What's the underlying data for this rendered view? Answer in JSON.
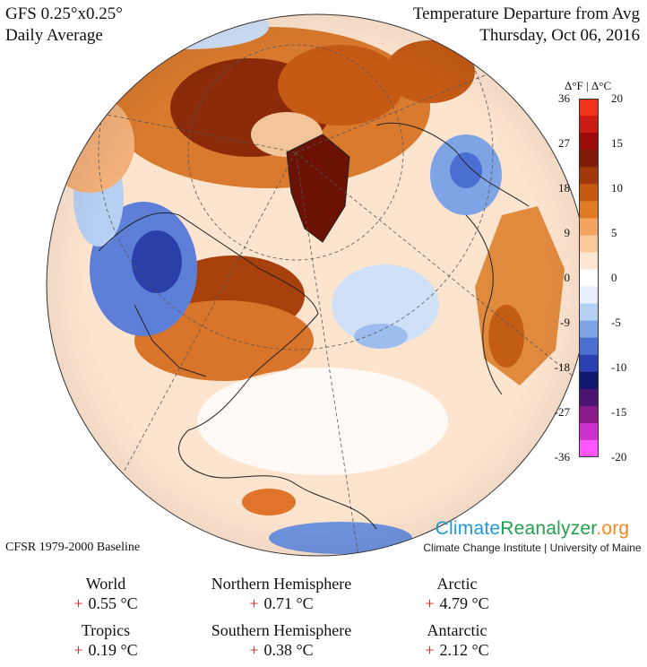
{
  "header": {
    "model": "GFS 0.25°x0.25°",
    "period": "Daily Average",
    "product": "Temperature Departure from Avg",
    "date": "Thursday, Oct 06, 2016"
  },
  "footer": {
    "baseline": "CFSR 1979-2000 Baseline",
    "logo_part1": "Climate",
    "logo_part2": "Reanalyzer",
    "logo_part3": ".org",
    "institution": "Climate Change Institute | University of Maine"
  },
  "scale": {
    "header": "Δ°F  |  Δ°C",
    "fahrenheit_ticks": [
      "36",
      "27",
      "18",
      "9",
      "0",
      "-9",
      "-18",
      "-27",
      "-36"
    ],
    "celsius_ticks": [
      "20",
      "15",
      "10",
      "5",
      "0",
      "-5",
      "-10",
      "-15",
      "-20"
    ],
    "colors": [
      "#ff55ff",
      "#cc33cc",
      "#8a1a8a",
      "#4a1470",
      "#101870",
      "#2a40b0",
      "#4a6fd0",
      "#7ea4e6",
      "#b5d0f2",
      "#e6effb",
      "#ffffff",
      "#fde7d3",
      "#fbc89c",
      "#f3a461",
      "#e07b24",
      "#c55a10",
      "#a0380a",
      "#7e1b05",
      "#9a0c0c",
      "#cc1a14",
      "#f13119"
    ],
    "ocean_color": "#fce6d2"
  },
  "stats": [
    {
      "region": "World",
      "sign": "+",
      "value": "0.55 °C"
    },
    {
      "region": "Northern Hemisphere",
      "sign": "+",
      "value": "0.71 °C"
    },
    {
      "region": "Arctic",
      "sign": "+",
      "value": "4.79 °C"
    },
    {
      "region": "Tropics",
      "sign": "+",
      "value": "0.19 °C"
    },
    {
      "region": "Southern Hemisphere",
      "sign": "+",
      "value": "0.38 °C"
    },
    {
      "region": "Antarctic",
      "sign": "+",
      "value": "2.12 °C"
    }
  ]
}
